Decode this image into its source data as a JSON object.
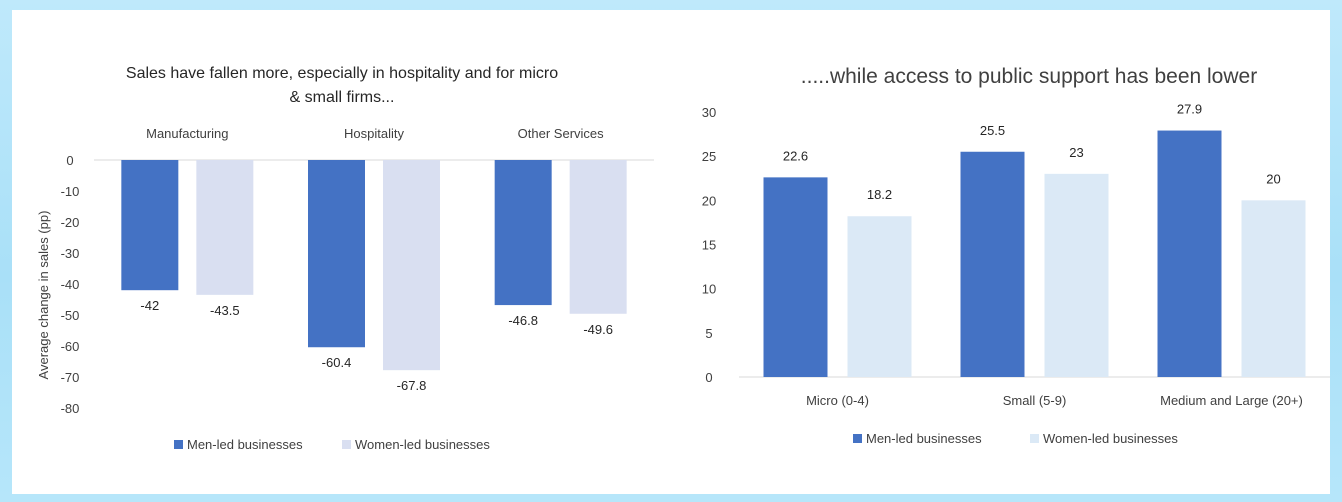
{
  "colors": {
    "men": "#4472c4",
    "women_left": "#d9dff1",
    "women_right": "#dbe9f6",
    "axis": "#d9d9d9"
  },
  "chart_data": [
    {
      "type": "bar",
      "title": "Sales have fallen more, especially in hospitality and for micro",
      "title_line2": "& small firms...",
      "ylabel": "Average change in sales (pp)",
      "categories": [
        "Manufacturing",
        "Hospitality",
        "Other Services"
      ],
      "series": [
        {
          "name": "Men-led businesses",
          "values": [
            -42,
            -60.4,
            -46.8
          ]
        },
        {
          "name": "Women-led businesses",
          "values": [
            -43.5,
            -67.8,
            -49.6
          ]
        }
      ],
      "data_labels": [
        [
          "-42",
          "-60.4",
          "-46.8"
        ],
        [
          "-43.5",
          "-67.8",
          "-49.6"
        ]
      ],
      "ylim": [
        -80,
        0
      ],
      "yticks": [
        "0",
        "-10",
        "-20",
        "-30",
        "-40",
        "-50",
        "-60",
        "-70",
        "-80"
      ],
      "category_axis_position": "top",
      "legend": "bottom",
      "grid": false
    },
    {
      "type": "bar",
      "title": ".....while access to public support has been lower",
      "categories": [
        "Micro (0-4)",
        "Small (5-9)",
        "Medium and Large (20+)"
      ],
      "series": [
        {
          "name": "Men-led businesses",
          "values": [
            22.6,
            25.5,
            27.9
          ]
        },
        {
          "name": "Women-led businesses",
          "values": [
            18.2,
            23,
            20
          ]
        }
      ],
      "data_labels": [
        [
          "22.6",
          "25.5",
          "27.9"
        ],
        [
          "18.2",
          "23",
          "20"
        ]
      ],
      "ylim": [
        0,
        30
      ],
      "yticks": [
        "0",
        "5",
        "10",
        "15",
        "20",
        "25",
        "30"
      ],
      "legend": "bottom",
      "grid": false
    }
  ]
}
